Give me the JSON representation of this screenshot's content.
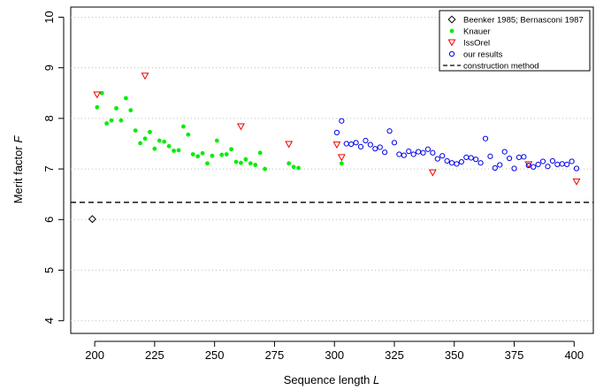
{
  "chart_data": {
    "type": "scatter",
    "xlabel": "Sequence length",
    "xlabel_var": "L",
    "ylabel": "Merit factor",
    "ylabel_var": "F",
    "xlim": [
      190,
      408
    ],
    "ylim": [
      3.75,
      10.2
    ],
    "xticks": [
      200,
      225,
      250,
      275,
      300,
      325,
      350,
      375,
      400
    ],
    "yticks": [
      4,
      5,
      6,
      7,
      8,
      9,
      10
    ],
    "grid": "horizontal dotted",
    "legend_position": "top-right",
    "series": [
      {
        "name": "Beenker 1985; Bernasconi 1987",
        "marker": "diamond-open",
        "color": "#000000",
        "points": [
          [
            199,
            6.01
          ]
        ]
      },
      {
        "name": "Knauer",
        "marker": "circle-filled",
        "color": "#00ee00",
        "points": [
          [
            201,
            8.22
          ],
          [
            203,
            8.5
          ],
          [
            205,
            7.9
          ],
          [
            207,
            7.96
          ],
          [
            209,
            8.2
          ],
          [
            211,
            7.96
          ],
          [
            213,
            8.4
          ],
          [
            215,
            8.16
          ],
          [
            217,
            7.76
          ],
          [
            219,
            7.51
          ],
          [
            221,
            7.6
          ],
          [
            223,
            7.73
          ],
          [
            225,
            7.4
          ],
          [
            227,
            7.56
          ],
          [
            229,
            7.54
          ],
          [
            231,
            7.45
          ],
          [
            233,
            7.36
          ],
          [
            235,
            7.37
          ],
          [
            237,
            7.84
          ],
          [
            239,
            7.68
          ],
          [
            241,
            7.29
          ],
          [
            243,
            7.25
          ],
          [
            245,
            7.31
          ],
          [
            247,
            7.11
          ],
          [
            249,
            7.26
          ],
          [
            251,
            7.56
          ],
          [
            253,
            7.28
          ],
          [
            255,
            7.29
          ],
          [
            257,
            7.39
          ],
          [
            259,
            7.14
          ],
          [
            261,
            7.12
          ],
          [
            263,
            7.19
          ],
          [
            265,
            7.11
          ],
          [
            267,
            7.08
          ],
          [
            269,
            7.32
          ],
          [
            271,
            7.0
          ],
          [
            281,
            7.11
          ],
          [
            283,
            7.04
          ],
          [
            285,
            7.02
          ],
          [
            303,
            7.11
          ]
        ]
      },
      {
        "name": "IssOrel",
        "marker": "triangle-down-open",
        "color": "#ee0000",
        "points": [
          [
            201,
            8.47
          ],
          [
            221,
            8.84
          ],
          [
            261,
            7.84
          ],
          [
            281,
            7.49
          ],
          [
            301,
            7.48
          ],
          [
            303,
            7.23
          ],
          [
            341,
            6.93
          ],
          [
            381,
            7.09
          ],
          [
            401,
            6.75
          ]
        ]
      },
      {
        "name": "our results",
        "marker": "circle-open",
        "color": "#0000ee",
        "points": [
          [
            301,
            7.72
          ],
          [
            303,
            7.95
          ],
          [
            305,
            7.5
          ],
          [
            307,
            7.49
          ],
          [
            309,
            7.52
          ],
          [
            311,
            7.44
          ],
          [
            313,
            7.56
          ],
          [
            315,
            7.48
          ],
          [
            317,
            7.4
          ],
          [
            319,
            7.43
          ],
          [
            321,
            7.33
          ],
          [
            323,
            7.75
          ],
          [
            325,
            7.52
          ],
          [
            327,
            7.29
          ],
          [
            329,
            7.27
          ],
          [
            331,
            7.35
          ],
          [
            333,
            7.29
          ],
          [
            335,
            7.34
          ],
          [
            337,
            7.32
          ],
          [
            339,
            7.39
          ],
          [
            341,
            7.32
          ],
          [
            343,
            7.2
          ],
          [
            345,
            7.26
          ],
          [
            347,
            7.16
          ],
          [
            349,
            7.12
          ],
          [
            351,
            7.1
          ],
          [
            353,
            7.14
          ],
          [
            355,
            7.23
          ],
          [
            357,
            7.22
          ],
          [
            359,
            7.19
          ],
          [
            361,
            7.12
          ],
          [
            363,
            7.6
          ],
          [
            365,
            7.25
          ],
          [
            367,
            7.02
          ],
          [
            369,
            7.08
          ],
          [
            371,
            7.34
          ],
          [
            373,
            7.21
          ],
          [
            375,
            7.01
          ],
          [
            377,
            7.23
          ],
          [
            379,
            7.24
          ],
          [
            381,
            7.07
          ],
          [
            383,
            7.04
          ],
          [
            385,
            7.09
          ],
          [
            387,
            7.15
          ],
          [
            389,
            7.05
          ],
          [
            391,
            7.16
          ],
          [
            393,
            7.09
          ],
          [
            395,
            7.1
          ],
          [
            397,
            7.09
          ],
          [
            399,
            7.15
          ],
          [
            401,
            7.01
          ]
        ]
      }
    ],
    "reference_lines": [
      {
        "name": "construction method",
        "style": "dashed",
        "color": "#000000",
        "y": 6.34
      }
    ]
  }
}
